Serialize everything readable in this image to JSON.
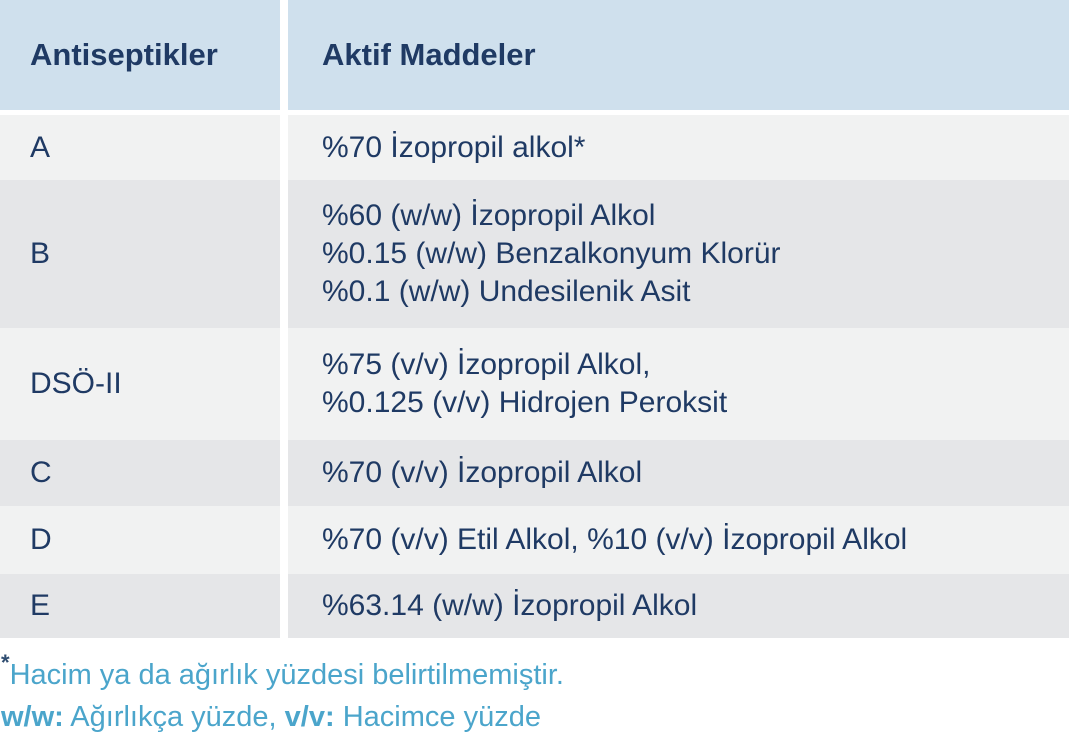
{
  "table": {
    "columns": [
      "Antiseptikler",
      "Aktif Maddeler"
    ],
    "rows": [
      {
        "antiseptic": "A",
        "actives": [
          "%70 İzopropil alkol*"
        ]
      },
      {
        "antiseptic": "B",
        "actives": [
          "%60 (w/w) İzopropil Alkol",
          "%0.15 (w/w) Benzalkonyum Klorür",
          "%0.1 (w/w) Undesilenik Asit"
        ]
      },
      {
        "antiseptic": "DSÖ-II",
        "actives": [
          "%75 (v/v) İzopropil Alkol,",
          "%0.125 (v/v) Hidrojen Peroksit"
        ]
      },
      {
        "antiseptic": "C",
        "actives": [
          "%70 (v/v) İzopropil Alkol"
        ]
      },
      {
        "antiseptic": "D",
        "actives": [
          "%70 (v/v) Etil Alkol, %10 (v/v) İzopropil Alkol"
        ]
      },
      {
        "antiseptic": "E",
        "actives": [
          "%63.14 (w/w) İzopropil Alkol"
        ]
      }
    ]
  },
  "footnotes": {
    "asterisk": "*",
    "line1": "Hacim ya da ağırlık yüzdesi belirtilmemiştir.",
    "line2_parts": [
      {
        "text": "w/w:",
        "bold": true
      },
      {
        "text": " Ağırlıkça yüzde, ",
        "bold": false
      },
      {
        "text": "v/v:",
        "bold": true
      },
      {
        "text": " Hacimce yüzde",
        "bold": false
      }
    ]
  },
  "colors": {
    "header_bg": "#cfe0ed",
    "row_light": "#f1f2f2",
    "row_dark": "#e5e6e8",
    "text_navy": "#1f3a64",
    "footnote_blue": "#4ba5cb",
    "asterisk_navy": "#2f4d71"
  }
}
